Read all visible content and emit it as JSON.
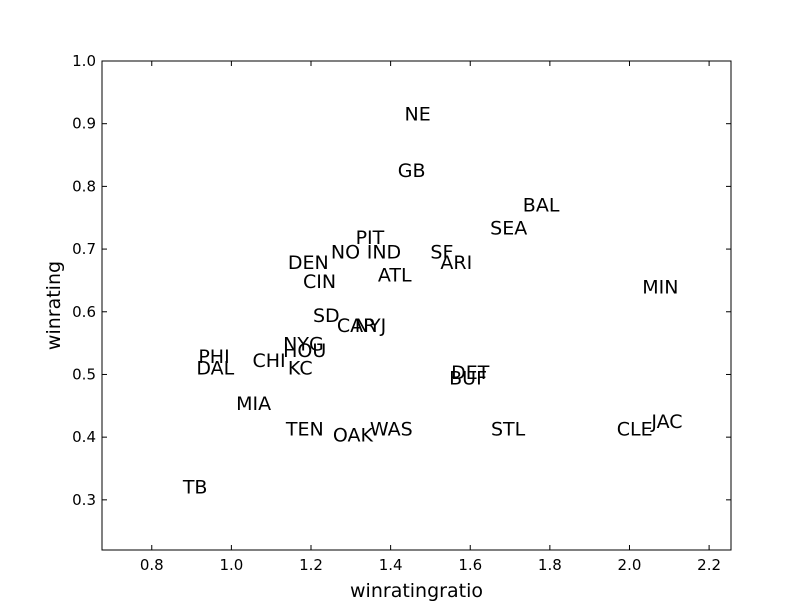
{
  "chart_data": {
    "type": "scatter",
    "xlabel": "winratingratio",
    "ylabel": "winrating",
    "xlim": [
      0.675,
      2.255
    ],
    "ylim": [
      0.22,
      1.0
    ],
    "xticks": [
      0.8,
      1.0,
      1.2,
      1.4,
      1.6,
      1.8,
      2.0,
      2.2
    ],
    "xtick_labels": [
      "0.8",
      "1.0",
      "1.2",
      "1.4",
      "1.6",
      "1.8",
      "2.0",
      "2.2"
    ],
    "yticks": [
      0.3,
      0.4,
      0.5,
      0.6,
      0.7,
      0.8,
      0.9,
      1.0
    ],
    "ytick_labels": [
      "0.3",
      "0.4",
      "0.5",
      "0.6",
      "0.7",
      "0.8",
      "0.9",
      "1.0"
    ],
    "grid": false,
    "points": [
      {
        "label": "NE",
        "x": 1.435,
        "y": 0.905
      },
      {
        "label": "GB",
        "x": 1.418,
        "y": 0.815
      },
      {
        "label": "BAL",
        "x": 1.732,
        "y": 0.76
      },
      {
        "label": "SEA",
        "x": 1.65,
        "y": 0.723
      },
      {
        "label": "PIT",
        "x": 1.312,
        "y": 0.708
      },
      {
        "label": "NO",
        "x": 1.25,
        "y": 0.685
      },
      {
        "label": "IND",
        "x": 1.34,
        "y": 0.685
      },
      {
        "label": "SF",
        "x": 1.5,
        "y": 0.685
      },
      {
        "label": "ARI",
        "x": 1.525,
        "y": 0.668
      },
      {
        "label": "DEN",
        "x": 1.142,
        "y": 0.668
      },
      {
        "label": "ATL",
        "x": 1.368,
        "y": 0.648
      },
      {
        "label": "CIN",
        "x": 1.18,
        "y": 0.638
      },
      {
        "label": "MIN",
        "x": 2.032,
        "y": 0.629
      },
      {
        "label": "SD",
        "x": 1.205,
        "y": 0.584
      },
      {
        "label": "CAR",
        "x": 1.265,
        "y": 0.568
      },
      {
        "label": "NYJ",
        "x": 1.31,
        "y": 0.568
      },
      {
        "label": "NYG",
        "x": 1.13,
        "y": 0.538
      },
      {
        "label": "HOU",
        "x": 1.13,
        "y": 0.528
      },
      {
        "label": "PHI",
        "x": 0.917,
        "y": 0.518
      },
      {
        "label": "CHI",
        "x": 1.053,
        "y": 0.512
      },
      {
        "label": "DAL",
        "x": 0.912,
        "y": 0.5
      },
      {
        "label": "KC",
        "x": 1.142,
        "y": 0.5
      },
      {
        "label": "DET",
        "x": 1.552,
        "y": 0.493
      },
      {
        "label": "BUF",
        "x": 1.547,
        "y": 0.484
      },
      {
        "label": "MIA",
        "x": 1.012,
        "y": 0.443
      },
      {
        "label": "JAC",
        "x": 2.055,
        "y": 0.415
      },
      {
        "label": "TEN",
        "x": 1.137,
        "y": 0.403
      },
      {
        "label": "WAS",
        "x": 1.348,
        "y": 0.403
      },
      {
        "label": "STL",
        "x": 1.652,
        "y": 0.403
      },
      {
        "label": "CLE",
        "x": 1.968,
        "y": 0.403
      },
      {
        "label": "OAK",
        "x": 1.255,
        "y": 0.393
      },
      {
        "label": "TB",
        "x": 0.878,
        "y": 0.31
      }
    ]
  }
}
